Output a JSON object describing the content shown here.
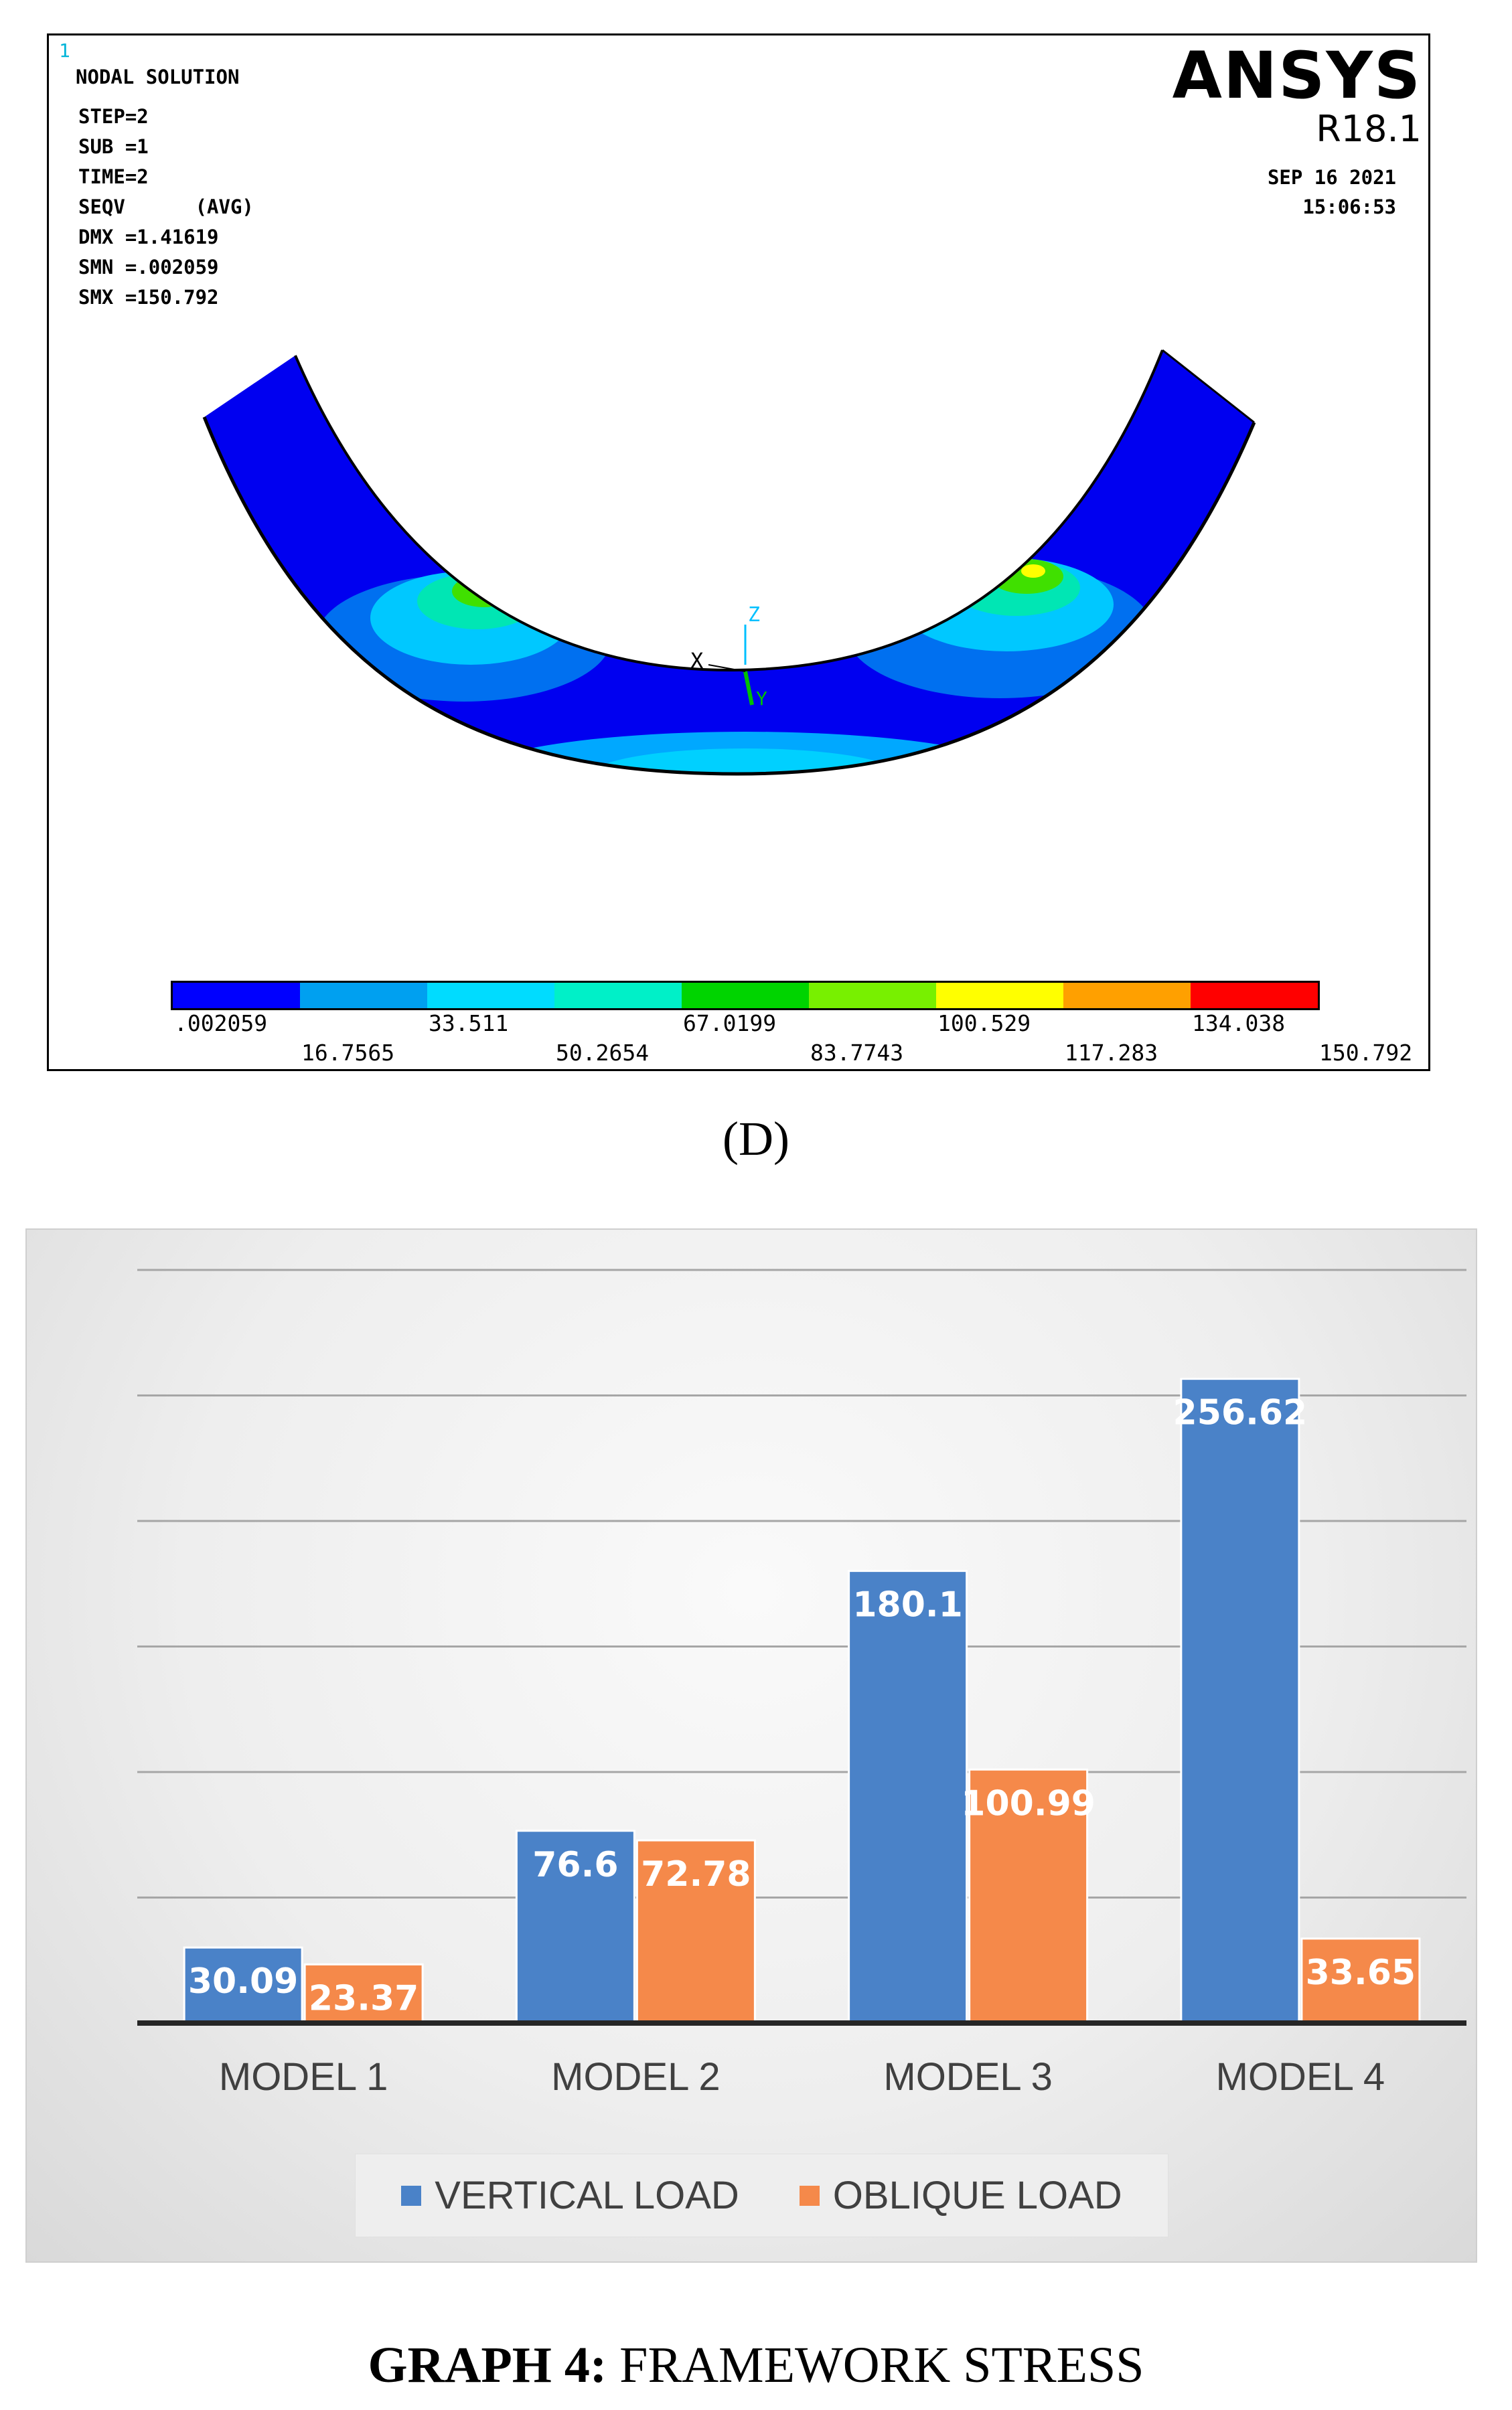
{
  "ansys": {
    "index_label": "1",
    "title": "NODAL SOLUTION",
    "params": [
      "STEP=2",
      "SUB =1",
      "TIME=2",
      "SEQV      (AVG)",
      "DMX =1.41619",
      "SMN =.002059",
      "SMX =150.792"
    ],
    "brand": "ANSYS",
    "version": "R18.1",
    "date": "SEP 16 2021",
    "time": "15:06:53",
    "axis_labels": {
      "x": "X",
      "z": "Z",
      "y": "Y"
    },
    "scale_colors": [
      "#0000ff",
      "#00a0f0",
      "#00dcff",
      "#00f0c8",
      "#00d400",
      "#78f000",
      "#ffff00",
      "#ffa000",
      "#ff0000"
    ],
    "scale_top_labels": [
      ".002059",
      "33.511",
      "67.0199",
      "100.529",
      "134.038"
    ],
    "scale_bottom_labels": [
      "16.7565",
      "50.2654",
      "83.7743",
      "117.283",
      "150.792"
    ]
  },
  "panel_label": "(D)",
  "caption": {
    "bold": "GRAPH 4:",
    "rest": " FRAMEWORK STRESS"
  },
  "chart_data": {
    "type": "bar",
    "categories": [
      "MODEL 1",
      "MODEL 2",
      "MODEL 3",
      "MODEL 4"
    ],
    "series": [
      {
        "name": "VERTICAL LOAD",
        "color": "#4a82c8",
        "values": [
          30.09,
          76.6,
          180.1,
          256.62
        ]
      },
      {
        "name": "OBLIQUE LOAD",
        "color": "#f5894a",
        "values": [
          23.37,
          72.78,
          100.99,
          33.65
        ]
      }
    ],
    "ylim": [
      0,
      300
    ],
    "gridlines": true,
    "data_labels": true,
    "legend_position": "bottom"
  }
}
